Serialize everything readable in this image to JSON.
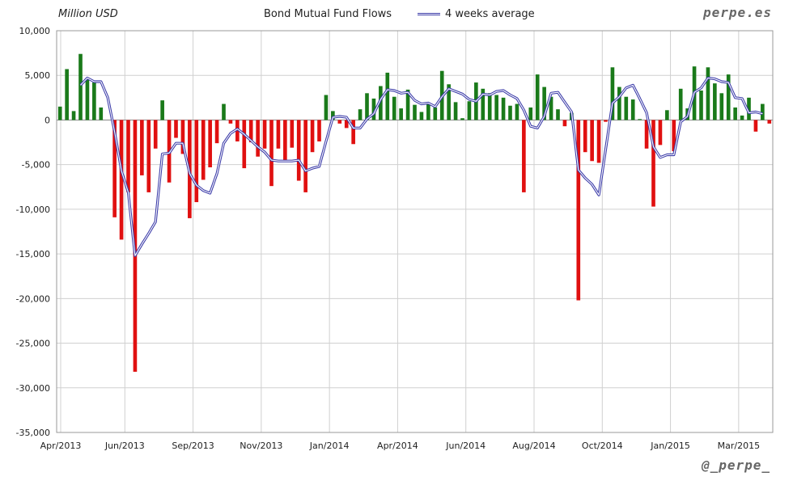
{
  "header": {
    "unit_label": "Million USD",
    "brand": "perpe.es",
    "handle": "@_perpe_"
  },
  "chart_data": {
    "type": "bar",
    "title": "Bond Mutual Fund Flows",
    "ylabel": "Million USD",
    "ylim": [
      -35000,
      10000
    ],
    "yticks": [
      10000,
      5000,
      0,
      -5000,
      -10000,
      -15000,
      -20000,
      -25000,
      -30000,
      -35000
    ],
    "ytick_labels": [
      "10,000",
      "5,000",
      "0",
      "-5,000",
      "-10,000",
      "-15,000",
      "-20,000",
      "-25,000",
      "-30,000",
      "-35,000"
    ],
    "xtick_labels": [
      "Apr/2013",
      "Jun/2013",
      "Sep/2013",
      "Nov/2013",
      "Jan/2014",
      "Apr/2014",
      "Jun/2014",
      "Aug/2014",
      "Oct/2014",
      "Jan/2015",
      "Mar/2015"
    ],
    "grid": true,
    "legend_position": "top-center",
    "colors": {
      "positive": "#1a7a1a",
      "negative": "#e01010",
      "average": "#3a3aa8",
      "grid": "#d0d0d0"
    },
    "series": [
      {
        "type": "bar",
        "values": [
          1500,
          5700,
          1000,
          7400,
          4700,
          4200,
          1400,
          0,
          -10900,
          -13400,
          -8100,
          -28200,
          -6200,
          -8100,
          -3200,
          2200,
          -7000,
          -2000,
          -3800,
          -11000,
          -9200,
          -6700,
          -5300,
          -2600,
          1800,
          -400,
          -2400,
          -5400,
          -2500,
          -4100,
          -3200,
          -7400,
          -3200,
          -4700,
          -3100,
          -6800,
          -8100,
          -3600,
          -2400,
          2800,
          1000,
          -400,
          -900,
          -2700,
          1200,
          3000,
          2400,
          3800,
          5300,
          2600,
          1300,
          3400,
          1700,
          900,
          1900,
          1400,
          5500,
          4000,
          2000,
          200,
          2100,
          4200,
          3500,
          3000,
          2800,
          2500,
          1600,
          1800,
          -8100,
          1400,
          5100,
          3700,
          2600,
          1200,
          -700,
          800,
          -20200,
          -3600,
          -4600,
          -4800,
          -200,
          5900,
          3700,
          2600,
          2300,
          100,
          -3200,
          -9700,
          -2800,
          1100,
          -3500,
          3500,
          1300,
          6000,
          3300,
          5900,
          4100,
          3000,
          5100,
          1400,
          500,
          2500,
          -1300,
          1800,
          -400
        ]
      },
      {
        "name": "4 weeks average",
        "type": "line",
        "values": [
          null,
          null,
          null,
          3900,
          4700,
          4300,
          4300,
          2500,
          -1300,
          -5700,
          -8100,
          -15200,
          -13900,
          -12700,
          -11400,
          -3800,
          -3700,
          -2600,
          -2600,
          -6000,
          -7300,
          -7900,
          -8200,
          -6000,
          -2600,
          -1500,
          -1000,
          -1600,
          -2300,
          -3000,
          -3600,
          -4500,
          -4600,
          -4600,
          -4600,
          -4500,
          -5700,
          -5400,
          -5200,
          -2400,
          300,
          400,
          300,
          -900,
          -900,
          100,
          700,
          2300,
          3400,
          3300,
          3000,
          3100,
          2200,
          1800,
          1900,
          1500,
          2600,
          3500,
          3200,
          2900,
          2300,
          2100,
          2900,
          2800,
          3200,
          3300,
          2800,
          2400,
          1100,
          -700,
          -900,
          400,
          3000,
          3100,
          2000,
          900,
          -5600,
          -6500,
          -7200,
          -8400,
          -3300,
          1900,
          2600,
          3600,
          3900,
          2400,
          800,
          -3000,
          -4200,
          -3900,
          -3900,
          -200,
          400,
          3100,
          3600,
          4700,
          4600,
          4300,
          4200,
          2500,
          2400,
          800,
          900,
          700
        ]
      }
    ]
  }
}
